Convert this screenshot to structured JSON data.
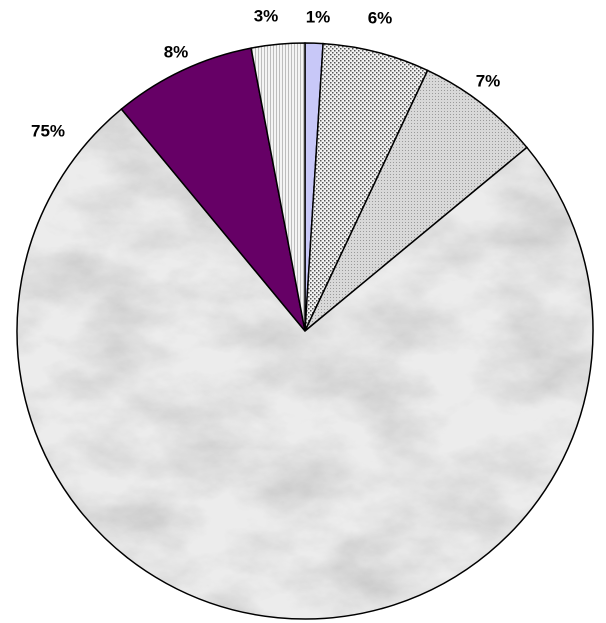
{
  "chart_data": {
    "type": "pie",
    "start_angle_deg": 0,
    "direction": "clockwise",
    "slices": [
      {
        "label": "1%",
        "value": 1,
        "color": "#c8c8f8",
        "pattern": "solid"
      },
      {
        "label": "6%",
        "value": 6,
        "color": "#e0e0e0",
        "pattern": "dots"
      },
      {
        "label": "7%",
        "value": 7,
        "color": "#d0d0d0",
        "pattern": "fine-dots"
      },
      {
        "label": "75%",
        "value": 75,
        "color": "#e8e8e8",
        "pattern": "marble"
      },
      {
        "label": "8%",
        "value": 8,
        "color": "#660066",
        "pattern": "solid"
      },
      {
        "label": "3%",
        "value": 3,
        "color": "#eeeeee",
        "pattern": "vertical-lines"
      }
    ],
    "legend": "none",
    "data_labels": "outside"
  }
}
